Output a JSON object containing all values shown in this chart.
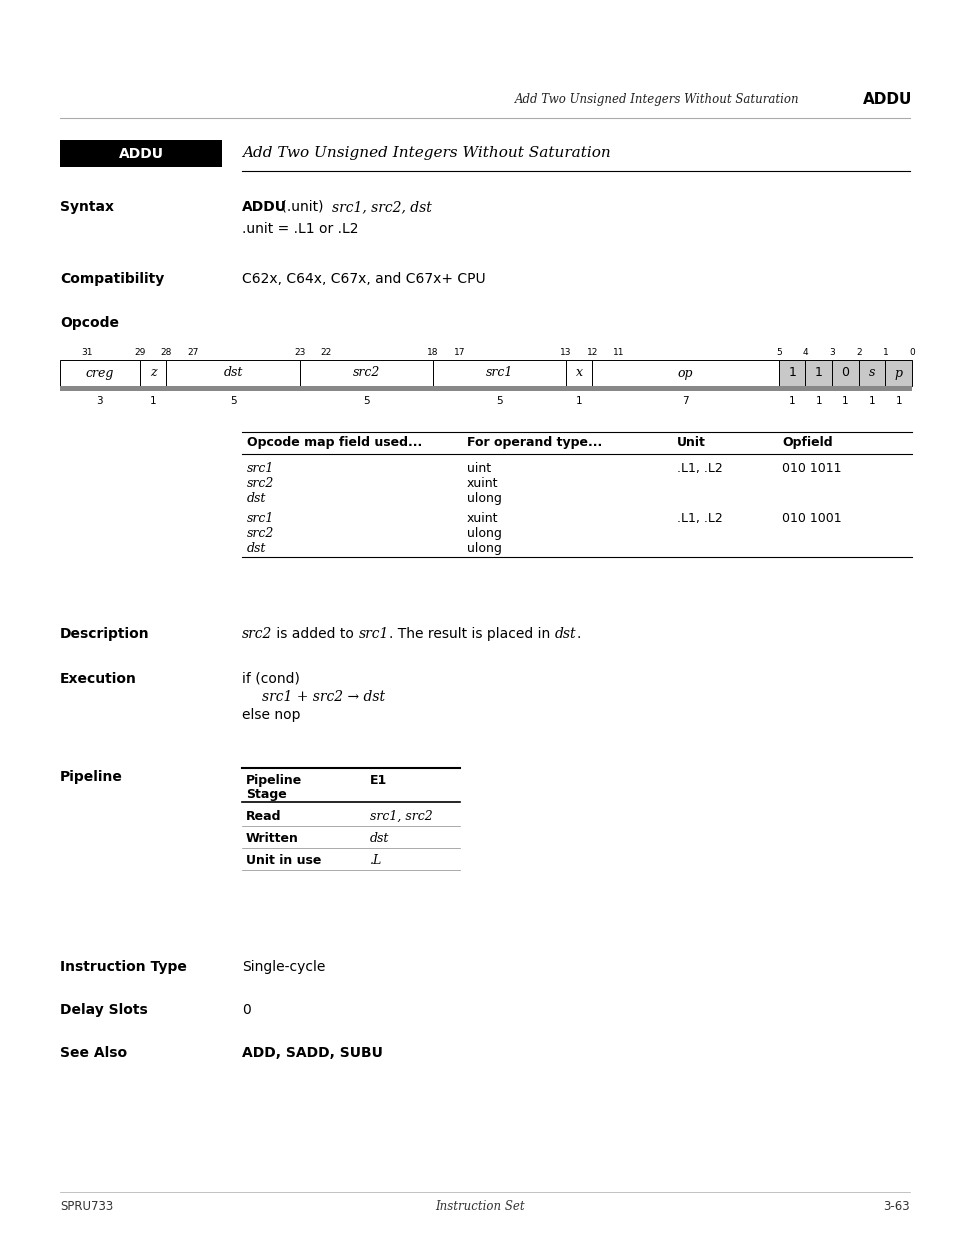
{
  "page_title_italic": "Add Two Unsigned Integers Without Saturation",
  "page_title_bold": "ADDU",
  "addu_title": "Add Two Unsigned Integers Without Saturation",
  "syntax_label": "Syntax",
  "syntax_line2": ".unit = .L1 or .L2",
  "compat_label": "Compatibility",
  "compat_text": "C62x, C64x, C67x, and C67x+ CPU",
  "opcode_label": "Opcode",
  "opcode_table_headers": [
    "Opcode map field used...",
    "For operand type...",
    "Unit",
    "Opfield"
  ],
  "opcode_rows": [
    {
      "fields": [
        "src1",
        "src2",
        "dst"
      ],
      "types": [
        "uint",
        "xuint",
        "ulong"
      ],
      "unit": ".L1, .L2",
      "opfield": "010 1011"
    },
    {
      "fields": [
        "src1",
        "src2",
        "dst"
      ],
      "types": [
        "xuint",
        "ulong",
        "ulong"
      ],
      "unit": ".L1, .L2",
      "opfield": "010 1001"
    }
  ],
  "description_label": "Description",
  "execution_label": "Execution",
  "pipeline_label": "Pipeline",
  "pipeline_rows": [
    {
      "label": "Read",
      "val": "src1, src2"
    },
    {
      "label": "Written",
      "val": "dst"
    },
    {
      "label": "Unit in use",
      "val": ".L"
    }
  ],
  "instruction_type_label": "Instruction Type",
  "instruction_type_value": "Single-cycle",
  "delay_slots_label": "Delay Slots",
  "delay_slots_value": "0",
  "see_also_label": "See Also",
  "see_also_value": "ADD, SADD, SUBU",
  "footer_left": "SPRU733",
  "footer_center": "Instruction Set",
  "footer_right": "3-63",
  "bg_color": "#ffffff"
}
